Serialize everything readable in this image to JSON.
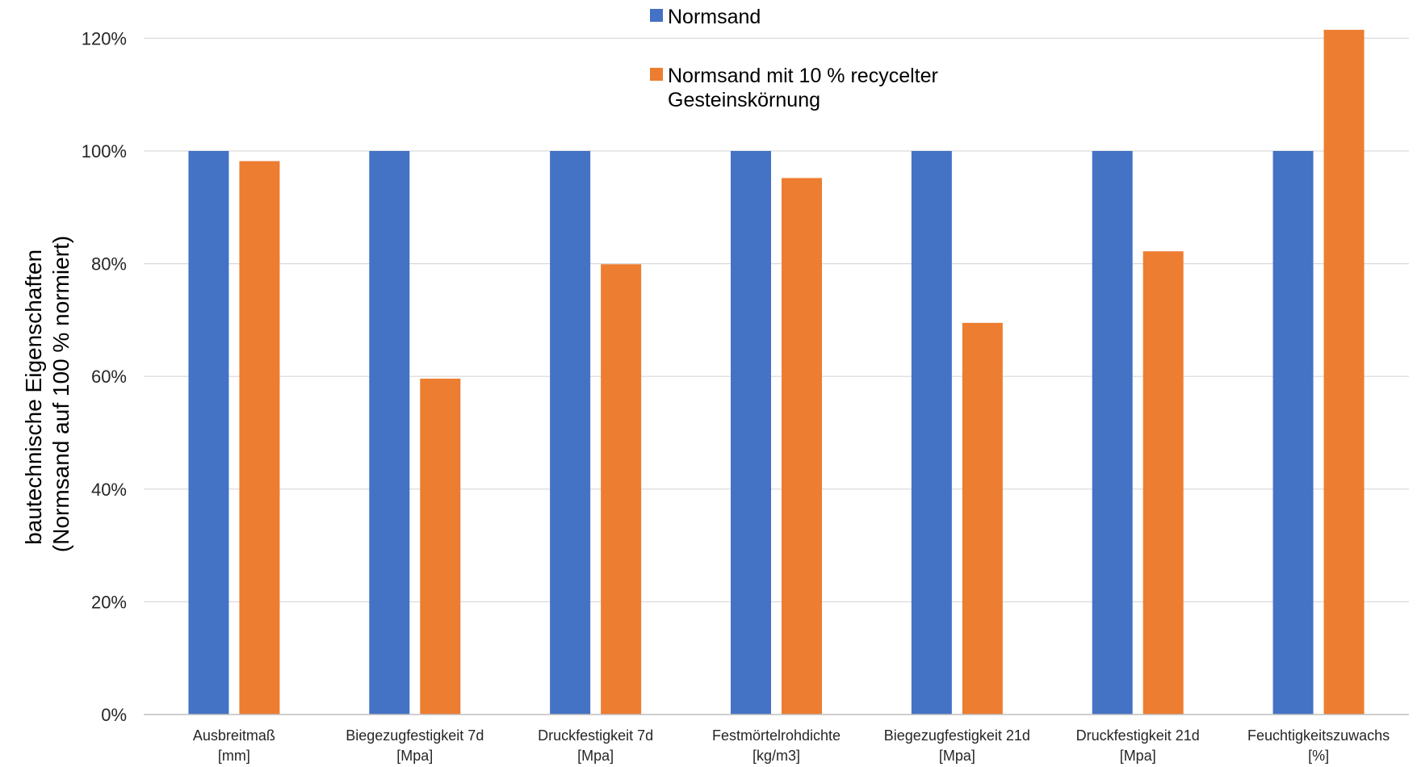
{
  "chart_data": {
    "type": "bar",
    "title": "",
    "ylabel": [
      "bautechnische Eigenschaften",
      "(Normsand auf 100 % normiert)"
    ],
    "xlabel": "",
    "ylim": [
      0,
      120
    ],
    "yticks": [
      0,
      20,
      40,
      60,
      80,
      100,
      120
    ],
    "ytick_labels": [
      "0%",
      "20%",
      "40%",
      "60%",
      "80%",
      "100%",
      "120%"
    ],
    "grid": true,
    "legend_position": "top-center",
    "categories": [
      [
        "Ausbreitmaß",
        "[mm]"
      ],
      [
        "Biegezugfestigkeit 7d",
        "[Mpa]"
      ],
      [
        "Druckfestigkeit 7d",
        "[Mpa]"
      ],
      [
        "Festmörtelrohdichte",
        "[kg/m3]"
      ],
      [
        "Biegezugfestigkeit 21d",
        "[Mpa]"
      ],
      [
        "Druckfestigkeit 21d",
        "[Mpa]"
      ],
      [
        "Feuchtigkeitszuwachs",
        "[%]"
      ]
    ],
    "series": [
      {
        "name": "Normsand",
        "color": "#4472C4",
        "values": [
          100,
          100,
          100,
          100,
          100,
          100,
          100
        ]
      },
      {
        "name": [
          "Normsand mit 10 % recycelter",
          "Gesteinskörnung"
        ],
        "color": "#ED7D31",
        "values": [
          98.2,
          59.6,
          79.9,
          95.2,
          69.5,
          82.2,
          121.5
        ]
      }
    ]
  }
}
